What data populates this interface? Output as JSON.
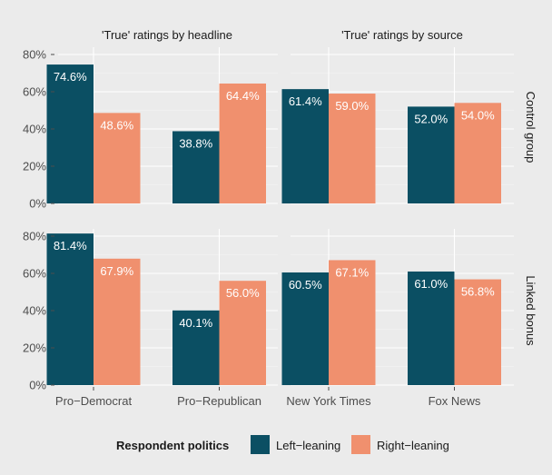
{
  "chart_data": {
    "type": "bar",
    "ylim": [
      0,
      80
    ],
    "y_ticks": [
      "0%",
      "20%",
      "40%",
      "60%",
      "80%"
    ],
    "y_tick_values": [
      0,
      20,
      40,
      60,
      80
    ],
    "grid": true,
    "legend_position": "bottom",
    "column_titles": [
      "'True' ratings by headline",
      "'True' ratings by source"
    ],
    "row_titles": [
      "Control group",
      "Linked bonus"
    ],
    "legend": {
      "title": "Respondent politics",
      "entries": [
        "Left−leaning",
        "Right−leaning"
      ]
    },
    "colors": {
      "left": "#0b4f63",
      "right": "#f0906e",
      "panel_bg": "#ebebeb",
      "grid": "#ffffff"
    },
    "panels": [
      {
        "row": 0,
        "col": 0,
        "categories": [
          "Pro−Democrat",
          "Pro−Republican"
        ],
        "series": [
          {
            "name": "Left−leaning",
            "values": [
              74.6,
              38.8
            ],
            "labels": [
              "74.6%",
              "38.8%"
            ]
          },
          {
            "name": "Right−leaning",
            "values": [
              48.6,
              64.4
            ],
            "labels": [
              "48.6%",
              "64.4%"
            ]
          }
        ]
      },
      {
        "row": 0,
        "col": 1,
        "categories": [
          "New York Times",
          "Fox News"
        ],
        "series": [
          {
            "name": "Left−leaning",
            "values": [
              61.4,
              52.0
            ],
            "labels": [
              "61.4%",
              "52.0%"
            ]
          },
          {
            "name": "Right−leaning",
            "values": [
              59.0,
              54.0
            ],
            "labels": [
              "59.0%",
              "54.0%"
            ]
          }
        ]
      },
      {
        "row": 1,
        "col": 0,
        "categories": [
          "Pro−Democrat",
          "Pro−Republican"
        ],
        "series": [
          {
            "name": "Left−leaning",
            "values": [
              81.4,
              40.1
            ],
            "labels": [
              "81.4%",
              "40.1%"
            ]
          },
          {
            "name": "Right−leaning",
            "values": [
              67.9,
              56.0
            ],
            "labels": [
              "67.9%",
              "56.0%"
            ]
          }
        ]
      },
      {
        "row": 1,
        "col": 1,
        "categories": [
          "New York Times",
          "Fox News"
        ],
        "series": [
          {
            "name": "Left−leaning",
            "values": [
              60.5,
              61.0
            ],
            "labels": [
              "60.5%",
              "61.0%"
            ]
          },
          {
            "name": "Right−leaning",
            "values": [
              67.1,
              56.8
            ],
            "labels": [
              "67.1%",
              "56.8%"
            ]
          }
        ]
      }
    ]
  }
}
